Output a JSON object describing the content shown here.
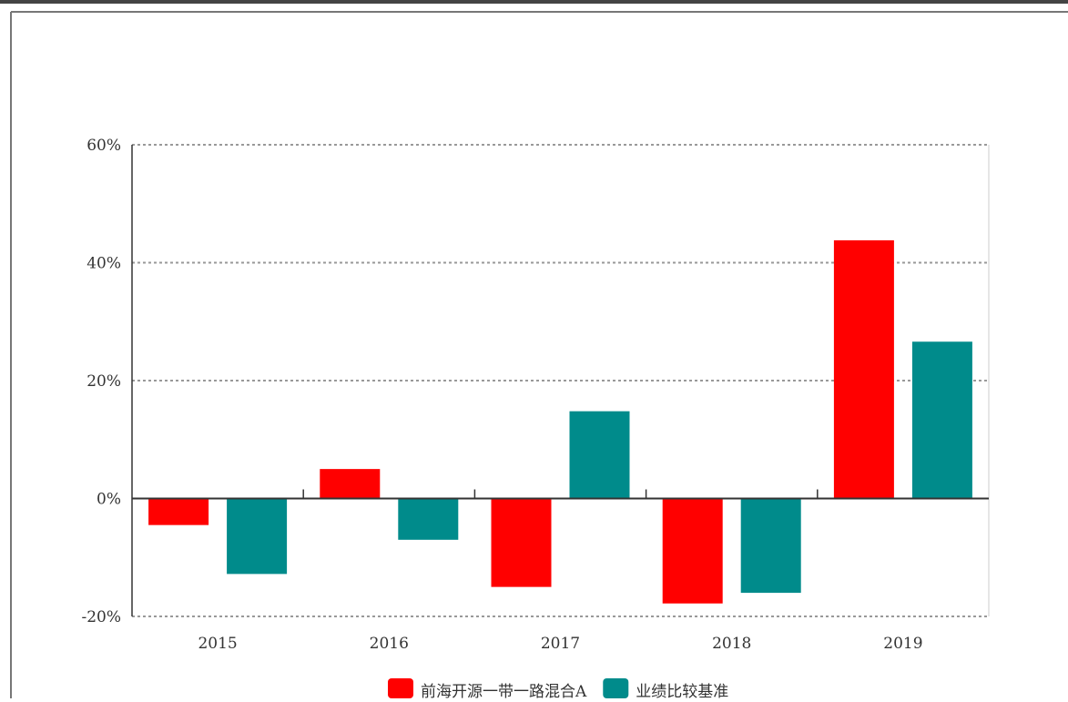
{
  "chart_data": {
    "type": "bar",
    "categories": [
      "2015",
      "2016",
      "2017",
      "2018",
      "2019"
    ],
    "series": [
      {
        "name": "前海开源一带一路混合A",
        "color": "#ff0000",
        "values": [
          -4.5,
          5.0,
          -15.0,
          -17.8,
          43.8
        ]
      },
      {
        "name": "业绩比较基准",
        "color": "#008b8b",
        "values": [
          -12.8,
          -7.0,
          14.8,
          -16.0,
          26.6
        ]
      }
    ],
    "ylim": [
      -20,
      60
    ],
    "yticks": [
      -20,
      0,
      20,
      40,
      60
    ],
    "ytick_labels": [
      "-20%",
      "0%",
      "20%",
      "40%",
      "60%"
    ],
    "grid": true,
    "legend_position": "bottom-center"
  }
}
